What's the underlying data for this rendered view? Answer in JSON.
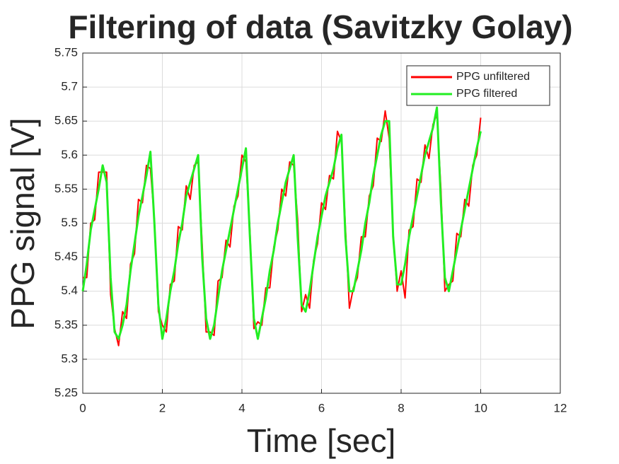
{
  "chart_data": {
    "type": "line",
    "title": "Filtering of data (Savitzky Golay)",
    "x_label": "Time [sec]",
    "y_label": "PPG signal [V]",
    "x": [
      0,
      0.1,
      0.2,
      0.3,
      0.4,
      0.5,
      0.6,
      0.7,
      0.8,
      0.9,
      1,
      1.1,
      1.2,
      1.3,
      1.4,
      1.5,
      1.6,
      1.7,
      1.8,
      1.9,
      2,
      2.1,
      2.2,
      2.3,
      2.4,
      2.5,
      2.6,
      2.7,
      2.8,
      2.9,
      3,
      3.1,
      3.2,
      3.3,
      3.4,
      3.5,
      3.6,
      3.7,
      3.8,
      3.9,
      4,
      4.1,
      4.2,
      4.3,
      4.4,
      4.5,
      4.6,
      4.7,
      4.8,
      4.9,
      5,
      5.1,
      5.2,
      5.3,
      5.4,
      5.5,
      5.6,
      5.7,
      5.8,
      5.9,
      6,
      6.1,
      6.2,
      6.3,
      6.4,
      6.5,
      6.6,
      6.7,
      6.8,
      6.9,
      7,
      7.1,
      7.2,
      7.3,
      7.4,
      7.5,
      7.6,
      7.7,
      7.8,
      7.9,
      8,
      8.1,
      8.2,
      8.3,
      8.4,
      8.5,
      8.6,
      8.7,
      8.8,
      8.9,
      9,
      9.1,
      9.2,
      9.3,
      9.4,
      9.5,
      9.6,
      9.7,
      9.8,
      9.9,
      10
    ],
    "series": [
      {
        "name": "PPG unfiltered",
        "color": "#ff0000",
        "values": [
          5.42,
          5.42,
          5.5,
          5.505,
          5.575,
          5.575,
          5.575,
          5.395,
          5.345,
          5.32,
          5.37,
          5.36,
          5.44,
          5.455,
          5.535,
          5.53,
          5.585,
          5.58,
          5.505,
          5.37,
          5.35,
          5.34,
          5.41,
          5.415,
          5.495,
          5.49,
          5.555,
          5.535,
          5.585,
          5.59,
          5.47,
          5.34,
          5.34,
          5.335,
          5.415,
          5.42,
          5.475,
          5.465,
          5.525,
          5.54,
          5.6,
          5.59,
          5.49,
          5.345,
          5.355,
          5.35,
          5.405,
          5.405,
          5.465,
          5.49,
          5.55,
          5.54,
          5.59,
          5.585,
          5.505,
          5.37,
          5.395,
          5.375,
          5.445,
          5.47,
          5.53,
          5.52,
          5.57,
          5.565,
          5.635,
          5.62,
          5.495,
          5.375,
          5.405,
          5.42,
          5.48,
          5.48,
          5.54,
          5.555,
          5.625,
          5.62,
          5.665,
          5.625,
          5.485,
          5.4,
          5.43,
          5.39,
          5.49,
          5.495,
          5.565,
          5.56,
          5.615,
          5.595,
          5.645,
          5.66,
          5.55,
          5.4,
          5.41,
          5.415,
          5.485,
          5.48,
          5.535,
          5.525,
          5.585,
          5.6,
          5.655
        ]
      },
      {
        "name": "PPG filtered",
        "color": "#22ee22",
        "values": [
          5.4,
          5.44,
          5.49,
          5.52,
          5.55,
          5.585,
          5.56,
          5.42,
          5.34,
          5.33,
          5.35,
          5.38,
          5.43,
          5.47,
          5.51,
          5.54,
          5.57,
          5.605,
          5.5,
          5.38,
          5.33,
          5.36,
          5.4,
          5.43,
          5.47,
          5.5,
          5.54,
          5.56,
          5.58,
          5.6,
          5.45,
          5.36,
          5.33,
          5.35,
          5.39,
          5.43,
          5.46,
          5.49,
          5.52,
          5.55,
          5.58,
          5.61,
          5.48,
          5.36,
          5.33,
          5.36,
          5.39,
          5.43,
          5.46,
          5.5,
          5.53,
          5.56,
          5.58,
          5.6,
          5.48,
          5.38,
          5.37,
          5.4,
          5.44,
          5.48,
          5.51,
          5.54,
          5.56,
          5.58,
          5.61,
          5.63,
          5.48,
          5.4,
          5.4,
          5.43,
          5.46,
          5.5,
          5.53,
          5.57,
          5.6,
          5.63,
          5.65,
          5.65,
          5.48,
          5.41,
          5.41,
          5.44,
          5.48,
          5.51,
          5.54,
          5.57,
          5.6,
          5.62,
          5.64,
          5.67,
          5.53,
          5.42,
          5.4,
          5.43,
          5.46,
          5.49,
          5.52,
          5.55,
          5.58,
          5.61,
          5.635
        ]
      }
    ],
    "xlim": [
      0,
      12
    ],
    "xticks": [
      0,
      2,
      4,
      6,
      8,
      10,
      12
    ],
    "ylim": [
      5.25,
      5.75
    ],
    "yticks": [
      5.25,
      5.3,
      5.35,
      5.4,
      5.45,
      5.5,
      5.55,
      5.6,
      5.65,
      5.7,
      5.75
    ],
    "grid": true,
    "legend_position": "northeast"
  }
}
